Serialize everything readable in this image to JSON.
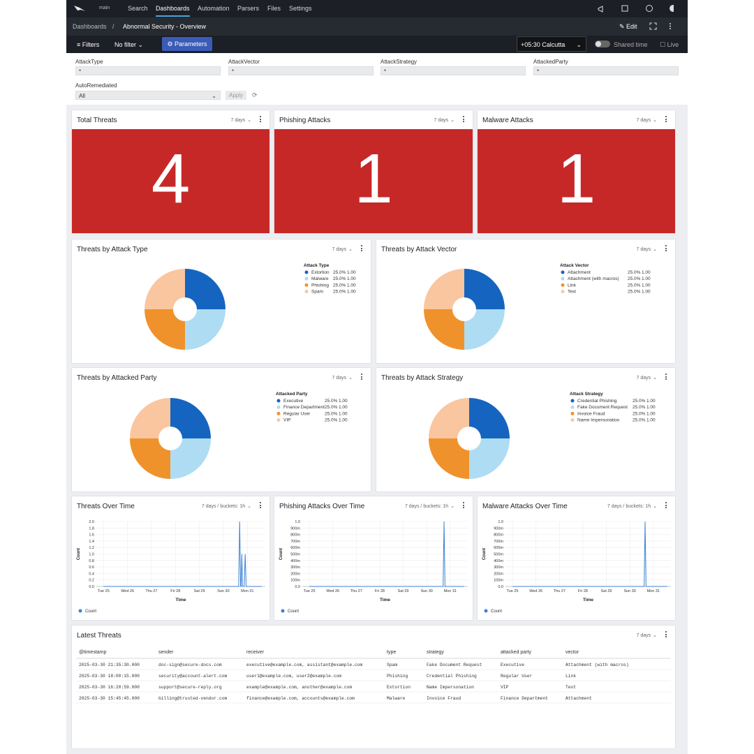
{
  "nav": {
    "workspace": "main",
    "items": [
      "Search",
      "Dashboards",
      "Automation",
      "Parsers",
      "Files",
      "Settings"
    ],
    "active": 1
  },
  "breadcrumb": {
    "root": "Dashboards",
    "separator": "/",
    "current": "Abnormal Security - Overview",
    "edit": "Edit"
  },
  "toolbar": {
    "filters": "Filters",
    "filter_select": "No filter",
    "parameters": "Parameters",
    "timezone": "+05:30 Calcutta",
    "shared_time": "Shared time",
    "live": "Live"
  },
  "parameters": {
    "fields": [
      {
        "label": "AttackType",
        "value": "*"
      },
      {
        "label": "AttackVector",
        "value": "*"
      },
      {
        "label": "AttackStrategy",
        "value": "*"
      },
      {
        "label": "AttackedParty",
        "value": "*"
      }
    ],
    "auto": {
      "label": "AutoRemediated",
      "value": "All"
    },
    "apply": "Apply"
  },
  "stats": [
    {
      "title": "Total Threats",
      "range": "7 days",
      "value": 4
    },
    {
      "title": "Phishing Attacks",
      "range": "7 days",
      "value": 1
    },
    {
      "title": "Malware Attacks",
      "range": "7 days",
      "value": 1
    }
  ],
  "stat_color": "#c62828",
  "pie_colors": [
    "#1565c0",
    "#aedcf3",
    "#f0922b",
    "#f9c6a0"
  ],
  "pies": [
    {
      "title": "Threats by Attack Type",
      "range": "7 days",
      "legend_title": "Attack Type",
      "categories": [
        "Extortion",
        "Malware",
        "Phishing",
        "Spam"
      ],
      "values": [
        1,
        1,
        1,
        1
      ],
      "value_labels": [
        "1.00",
        "1.00",
        "1.00",
        "1.00"
      ],
      "percent_labels": [
        "25.0%",
        "25.0%",
        "25.0%",
        "25.0%"
      ]
    },
    {
      "title": "Threats by Attack Vector",
      "range": "7 days",
      "legend_title": "Attack Vector",
      "categories": [
        "Attachment",
        "Attachment (with macros)",
        "Link",
        "Text"
      ],
      "values": [
        1,
        1,
        1,
        1
      ],
      "value_labels": [
        "1.00",
        "1.00",
        "1.00",
        "1.00"
      ],
      "percent_labels": [
        "25.0%",
        "25.0%",
        "25.0%",
        "25.0%"
      ]
    },
    {
      "title": "Threats by Attacked Party",
      "range": "7 days",
      "legend_title": "Attacked Party",
      "categories": [
        "Executive",
        "Finance Department",
        "Regular User",
        "VIP"
      ],
      "values": [
        1,
        1,
        1,
        1
      ],
      "value_labels": [
        "1.00",
        "1.00",
        "1.00",
        "1.00"
      ],
      "percent_labels": [
        "25.0%",
        "25.0%",
        "25.0%",
        "25.0%"
      ]
    },
    {
      "title": "Threats by Attack Strategy",
      "range": "7 days",
      "legend_title": "Attack Strategy",
      "categories": [
        "Credential Phishing",
        "Fake Document Request",
        "Invoice Fraud",
        "Name Impersonation"
      ],
      "values": [
        1,
        1,
        1,
        1
      ],
      "value_labels": [
        "1.00",
        "1.00",
        "1.00",
        "1.00"
      ],
      "percent_labels": [
        "25.0%",
        "25.0%",
        "25.0%",
        "25.0%"
      ]
    }
  ],
  "line_color": "#3b82d6",
  "timeseries": [
    {
      "title": "Threats Over Time",
      "range": "7 days / buckets: 1h",
      "x_label": "Time",
      "y_label": "Count",
      "series_name": "Count",
      "xlim": [
        -0.3,
        6.75
      ],
      "xticks": [
        {
          "value": 0,
          "label": "Tue 25"
        },
        {
          "value": 1,
          "label": "Wed 26"
        },
        {
          "value": 2,
          "label": "Thu 27"
        },
        {
          "value": 3,
          "label": "Fri 28"
        },
        {
          "value": 4,
          "label": "Sat 29"
        },
        {
          "value": 5,
          "label": "Sun 30"
        },
        {
          "value": 6,
          "label": "Mon 31"
        }
      ],
      "ylim": [
        0,
        2
      ],
      "yticks": [
        {
          "value": 0,
          "label": "0.0"
        },
        {
          "value": 0.2,
          "label": "0.2"
        },
        {
          "value": 0.4,
          "label": "0.4"
        },
        {
          "value": 0.6,
          "label": "0.6"
        },
        {
          "value": 0.8,
          "label": "0.8"
        },
        {
          "value": 1,
          "label": "1.0"
        },
        {
          "value": 1.2,
          "label": "1.2"
        },
        {
          "value": 1.4,
          "label": "1.4"
        },
        {
          "value": 1.6,
          "label": "1.6"
        },
        {
          "value": 1.8,
          "label": "1.8"
        },
        {
          "value": 2,
          "label": "2.0"
        }
      ],
      "x": [
        0,
        5.64,
        5.68,
        5.72,
        5.74,
        5.77,
        5.8,
        5.87,
        5.91,
        5.95,
        6.6
      ],
      "values": [
        0,
        0,
        2,
        0,
        0,
        1,
        0,
        0,
        1,
        0,
        0
      ]
    },
    {
      "title": "Phishing Attacks Over Time",
      "range": "7 days / buckets: 1h",
      "x_label": "Time",
      "y_label": "Count",
      "series_name": "Count",
      "xlim": [
        -0.3,
        6.75
      ],
      "xticks": [
        {
          "value": 0,
          "label": "Tue 25"
        },
        {
          "value": 1,
          "label": "Wed 26"
        },
        {
          "value": 2,
          "label": "Thu 27"
        },
        {
          "value": 3,
          "label": "Fri 28"
        },
        {
          "value": 4,
          "label": "Sat 29"
        },
        {
          "value": 5,
          "label": "Sun 30"
        },
        {
          "value": 6,
          "label": "Mon 31"
        }
      ],
      "ylim": [
        0,
        1
      ],
      "yticks": [
        {
          "value": 0,
          "label": "0.0"
        },
        {
          "value": 0.1,
          "label": "100m"
        },
        {
          "value": 0.2,
          "label": "200m"
        },
        {
          "value": 0.3,
          "label": "300m"
        },
        {
          "value": 0.4,
          "label": "400m"
        },
        {
          "value": 0.5,
          "label": "500m"
        },
        {
          "value": 0.6,
          "label": "600m"
        },
        {
          "value": 0.7,
          "label": "700m"
        },
        {
          "value": 0.8,
          "label": "800m"
        },
        {
          "value": 0.9,
          "label": "900m"
        },
        {
          "value": 1,
          "label": "1.0"
        }
      ],
      "x": [
        0,
        5.7,
        5.74,
        5.78,
        6.6
      ],
      "values": [
        0,
        0,
        1,
        0,
        0
      ]
    },
    {
      "title": "Malware Attacks Over Time",
      "range": "7 days / buckets: 1h",
      "x_label": "Time",
      "y_label": "Count",
      "series_name": "Count",
      "xlim": [
        -0.3,
        6.75
      ],
      "xticks": [
        {
          "value": 0,
          "label": "Tue 25"
        },
        {
          "value": 1,
          "label": "Wed 26"
        },
        {
          "value": 2,
          "label": "Thu 27"
        },
        {
          "value": 3,
          "label": "Fri 28"
        },
        {
          "value": 4,
          "label": "Sat 29"
        },
        {
          "value": 5,
          "label": "Sun 30"
        },
        {
          "value": 6,
          "label": "Mon 31"
        }
      ],
      "ylim": [
        0,
        1
      ],
      "yticks": [
        {
          "value": 0,
          "label": "0.0"
        },
        {
          "value": 0.1,
          "label": "100m"
        },
        {
          "value": 0.2,
          "label": "200m"
        },
        {
          "value": 0.3,
          "label": "300m"
        },
        {
          "value": 0.4,
          "label": "400m"
        },
        {
          "value": 0.5,
          "label": "500m"
        },
        {
          "value": 0.6,
          "label": "600m"
        },
        {
          "value": 0.7,
          "label": "700m"
        },
        {
          "value": 0.8,
          "label": "800m"
        },
        {
          "value": 0.9,
          "label": "900m"
        },
        {
          "value": 1,
          "label": "1.0"
        }
      ],
      "x": [
        0,
        5.61,
        5.65,
        5.69,
        6.6
      ],
      "values": [
        0,
        0,
        1,
        0,
        0
      ]
    }
  ],
  "table": {
    "title": "Latest Threats",
    "range": "7 days",
    "columns": [
      "@timestamp",
      "sender",
      "receiver",
      "type",
      "strategy",
      "attacked party",
      "vector"
    ],
    "rows": [
      [
        "2025-03-30 21:35:30.000",
        "doc-sign@secure-docs.com",
        "executive@example.com, assistant@example.com",
        "Spam",
        "Fake Document Request",
        "Executive",
        "Attachment (with macros)"
      ],
      [
        "2025-03-30 18:00:15.000",
        "security@account-alert.com",
        "user1@example.com, user2@example.com",
        "Phishing",
        "Credential Phishing",
        "Regular User",
        "Link"
      ],
      [
        "2025-03-30 16:20:59.000",
        "support@secure-reply.org",
        "example@example.com, another@example.com",
        "Extortion",
        "Name Impersonation",
        "VIP",
        "Text"
      ],
      [
        "2025-03-30 15:45:45.000",
        "billing@trusted-vendor.com",
        "finance@example.com, accounts@example.com",
        "Malware",
        "Invoice Fraud",
        "Finance Department",
        "Attachment"
      ]
    ]
  }
}
